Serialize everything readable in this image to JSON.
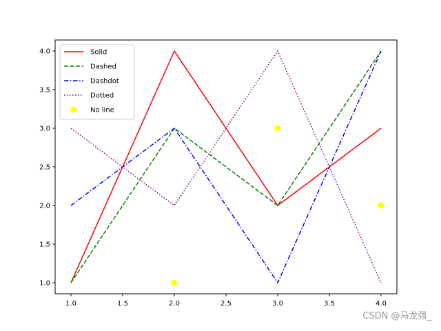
{
  "chart_data": {
    "type": "line",
    "title": "",
    "xlabel": "",
    "ylabel": "",
    "x": [
      1,
      2,
      3,
      4
    ],
    "xlim": [
      0.85,
      4.15
    ],
    "ylim": [
      0.85,
      4.15
    ],
    "xticks": [
      "1.0",
      "1.5",
      "2.0",
      "2.5",
      "3.0",
      "3.5",
      "4.0"
    ],
    "yticks": [
      "1.0",
      "1.5",
      "2.0",
      "2.5",
      "3.0",
      "3.5",
      "4.0"
    ],
    "grid": false,
    "legend_position": "upper left",
    "series": [
      {
        "name": "Solid",
        "values": [
          1,
          4,
          2,
          3
        ],
        "color": "#ff0000",
        "linestyle": "solid"
      },
      {
        "name": "Dashed",
        "values": [
          1,
          3,
          2,
          4
        ],
        "color": "#008000",
        "linestyle": "dashed"
      },
      {
        "name": "Dashdot",
        "values": [
          2,
          3,
          1,
          4
        ],
        "color": "#0000ff",
        "linestyle": "dashdot"
      },
      {
        "name": "Dotted",
        "values": [
          3,
          2,
          4,
          1
        ],
        "color": "#800080",
        "linestyle": "dotted"
      },
      {
        "name": "No line",
        "values": [
          null,
          1,
          3,
          2
        ],
        "color": "#ffff00",
        "linestyle": "none",
        "marker": "o"
      }
    ]
  },
  "watermark": "CSDN @马龙强_"
}
